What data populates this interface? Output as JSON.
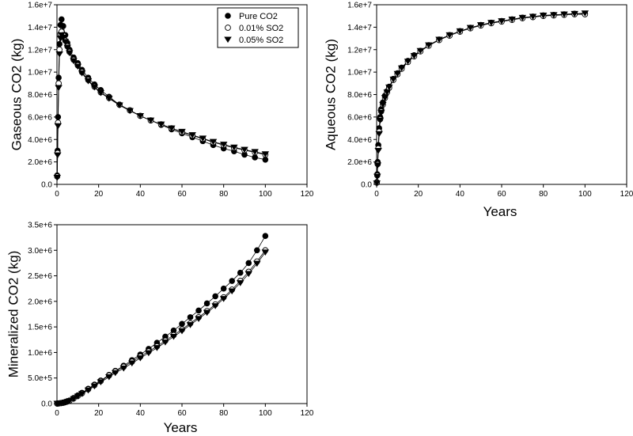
{
  "chart_data": [
    {
      "type": "scatter",
      "title": "",
      "xlabel": "",
      "ylabel": "Gaseous CO2 (kg)",
      "xlim": [
        0,
        120
      ],
      "ylim": [
        0,
        16000000
      ],
      "xticks": [
        0,
        20,
        40,
        60,
        80,
        100,
        120
      ],
      "xtick_labels": [
        "0",
        "20",
        "40",
        "60",
        "80",
        "100",
        "120"
      ],
      "yticks": [
        0,
        2000000,
        4000000,
        6000000,
        8000000,
        10000000,
        12000000,
        14000000,
        16000000
      ],
      "ytick_labels": [
        "0.0",
        "2.0e+6",
        "4.0e+6",
        "6.0e+6",
        "8.0e+6",
        "1.0e+7",
        "1.2e+7",
        "1.4e+7",
        "1.6e+7"
      ],
      "grid": false,
      "legend": {
        "position": "top-right",
        "entries": [
          {
            "label": "Pure CO2",
            "marker": "filled-circle"
          },
          {
            "label": "0.01% SO2",
            "marker": "open-circle"
          },
          {
            "label": "0.05% SO2",
            "marker": "filled-triangle-down"
          }
        ]
      },
      "series": [
        {
          "marker": "filled-circle",
          "x": [
            0.1,
            0.3,
            0.5,
            0.8,
            1.2,
            1.7,
            2.2,
            3,
            4,
            5,
            6,
            8,
            10,
            12,
            15,
            18,
            21,
            25,
            30,
            35,
            40,
            45,
            50,
            55,
            60,
            65,
            70,
            75,
            80,
            85,
            90,
            95,
            100
          ],
          "y": [
            800000,
            3000000,
            6000000,
            9500000,
            12500000,
            14200000,
            14700000,
            14100000,
            13300000,
            12600000,
            12000000,
            11300000,
            10800000,
            10200000,
            9500000,
            8900000,
            8400000,
            7800000,
            7100000,
            6600000,
            6100000,
            5700000,
            5300000,
            4900000,
            4550000,
            4200000,
            3850000,
            3500000,
            3200000,
            2950000,
            2650000,
            2400000,
            2200000
          ]
        },
        {
          "marker": "open-circle",
          "x": [
            0.1,
            0.3,
            0.5,
            0.8,
            1.2,
            1.7,
            2.2,
            3,
            4,
            5,
            6,
            8,
            10,
            12,
            15,
            18,
            21,
            25,
            30,
            35,
            40,
            45,
            50,
            55,
            60,
            65,
            70,
            75,
            80,
            85,
            90,
            95,
            100
          ],
          "y": [
            700000,
            2800000,
            5500000,
            9000000,
            12000000,
            13400000,
            13600000,
            13300000,
            12800000,
            12300000,
            11800000,
            11100000,
            10600000,
            10000000,
            9300000,
            8700000,
            8200000,
            7700000,
            7100000,
            6600000,
            6100000,
            5700000,
            5350000,
            5000000,
            4650000,
            4350000,
            4050000,
            3750000,
            3500000,
            3250000,
            3050000,
            2850000,
            2650000
          ]
        },
        {
          "marker": "filled-triangle-down",
          "x": [
            0.1,
            0.3,
            0.5,
            0.8,
            1.2,
            1.7,
            2.2,
            3,
            4,
            5,
            6,
            8,
            10,
            12,
            15,
            18,
            21,
            25,
            30,
            35,
            40,
            45,
            50,
            55,
            60,
            65,
            70,
            75,
            80,
            85,
            90,
            95,
            100
          ],
          "y": [
            600000,
            2600000,
            5200000,
            8600000,
            11600000,
            13000000,
            13300000,
            13100000,
            12700000,
            12200000,
            11700000,
            11000000,
            10500000,
            9900000,
            9200000,
            8650000,
            8150000,
            7650000,
            7050000,
            6550000,
            6100000,
            5700000,
            5350000,
            5000000,
            4700000,
            4400000,
            4100000,
            3800000,
            3550000,
            3300000,
            3100000,
            2900000,
            2700000
          ]
        }
      ]
    },
    {
      "type": "scatter",
      "title": "",
      "xlabel": "Years",
      "ylabel": "Aqueous CO2 (kg)",
      "xlim": [
        0,
        120
      ],
      "ylim": [
        0,
        16000000
      ],
      "xticks": [
        0,
        20,
        40,
        60,
        80,
        100,
        120
      ],
      "xtick_labels": [
        "0",
        "20",
        "40",
        "60",
        "80",
        "100",
        "120"
      ],
      "yticks": [
        0,
        2000000,
        4000000,
        6000000,
        8000000,
        10000000,
        12000000,
        14000000,
        16000000
      ],
      "ytick_labels": [
        "0.0",
        "2.0e+6",
        "4.0e+6",
        "6.0e+6",
        "8.0e+6",
        "1.0e+7",
        "1.2e+7",
        "1.4e+7",
        "1.6e+7"
      ],
      "grid": false,
      "series": [
        {
          "marker": "filled-circle",
          "x": [
            0.1,
            0.3,
            0.5,
            0.8,
            1.2,
            1.7,
            2.2,
            3,
            4,
            5,
            6,
            8,
            10,
            12,
            15,
            18,
            21,
            25,
            30,
            35,
            40,
            45,
            50,
            55,
            60,
            65,
            70,
            75,
            80,
            85,
            90,
            95,
            100
          ],
          "y": [
            200000,
            900000,
            2000000,
            3500000,
            5000000,
            6000000,
            6700000,
            7300000,
            7900000,
            8300000,
            8700000,
            9400000,
            9900000,
            10400000,
            11000000,
            11500000,
            11900000,
            12400000,
            12900000,
            13300000,
            13650000,
            13950000,
            14200000,
            14400000,
            14550000,
            14700000,
            14850000,
            14950000,
            15050000,
            15100000,
            15150000,
            15200000,
            15200000
          ]
        },
        {
          "marker": "open-circle",
          "x": [
            0.1,
            0.3,
            0.5,
            0.8,
            1.2,
            1.7,
            2.2,
            3,
            4,
            5,
            6,
            8,
            10,
            12,
            15,
            18,
            21,
            25,
            30,
            35,
            40,
            45,
            50,
            55,
            60,
            65,
            70,
            75,
            80,
            85,
            90,
            95,
            100
          ],
          "y": [
            150000,
            800000,
            1800000,
            3200000,
            4700000,
            5800000,
            6500000,
            7100000,
            7700000,
            8200000,
            8600000,
            9300000,
            9800000,
            10300000,
            10900000,
            11400000,
            11850000,
            12350000,
            12850000,
            13250000,
            13600000,
            13900000,
            14150000,
            14350000,
            14500000,
            14650000,
            14800000,
            14900000,
            15000000,
            15050000,
            15100000,
            15150000,
            15150000
          ]
        },
        {
          "marker": "filled-triangle-down",
          "x": [
            0.1,
            0.3,
            0.5,
            0.8,
            1.2,
            1.7,
            2.2,
            3,
            4,
            5,
            6,
            8,
            10,
            12,
            15,
            18,
            21,
            25,
            30,
            35,
            40,
            45,
            50,
            55,
            60,
            65,
            70,
            75,
            80,
            85,
            90,
            95,
            100
          ],
          "y": [
            100000,
            700000,
            1700000,
            3000000,
            4500000,
            5700000,
            6400000,
            7100000,
            7700000,
            8200000,
            8650000,
            9350000,
            9850000,
            10350000,
            10950000,
            11450000,
            11900000,
            12400000,
            12900000,
            13300000,
            13650000,
            13950000,
            14200000,
            14400000,
            14550000,
            14700000,
            14850000,
            14950000,
            15050000,
            15100000,
            15150000,
            15200000,
            15250000
          ]
        }
      ]
    },
    {
      "type": "scatter",
      "title": "",
      "xlabel": "Years",
      "ylabel": "Mineralized CO2 (kg)",
      "xlim": [
        0,
        120
      ],
      "ylim": [
        0,
        3500000
      ],
      "xticks": [
        0,
        20,
        40,
        60,
        80,
        100,
        120
      ],
      "xtick_labels": [
        "0",
        "20",
        "40",
        "60",
        "80",
        "100",
        "120"
      ],
      "yticks": [
        0,
        500000,
        1000000,
        1500000,
        2000000,
        2500000,
        3000000,
        3500000
      ],
      "ytick_labels": [
        "0.0",
        "5.0e+5",
        "1.0e+6",
        "1.5e+6",
        "2.0e+6",
        "2.5e+6",
        "3.0e+6",
        "3.5e+6"
      ],
      "grid": false,
      "series": [
        {
          "marker": "filled-circle",
          "x": [
            0.1,
            0.5,
            1,
            2,
            3,
            4,
            5,
            6,
            8,
            10,
            12,
            15,
            18,
            21,
            25,
            28,
            32,
            36,
            40,
            44,
            48,
            52,
            56,
            60,
            64,
            68,
            72,
            76,
            80,
            84,
            88,
            92,
            96,
            100
          ],
          "y": [
            0,
            2000,
            5000,
            10000,
            18000,
            30000,
            45000,
            60000,
            110000,
            160000,
            210000,
            290000,
            370000,
            450000,
            560000,
            640000,
            740000,
            850000,
            960000,
            1070000,
            1190000,
            1310000,
            1430000,
            1560000,
            1690000,
            1820000,
            1960000,
            2100000,
            2250000,
            2400000,
            2560000,
            2750000,
            3000000,
            3280000
          ]
        },
        {
          "marker": "open-circle",
          "x": [
            0.1,
            0.5,
            1,
            2,
            3,
            4,
            5,
            6,
            8,
            10,
            12,
            15,
            18,
            21,
            25,
            28,
            32,
            36,
            40,
            44,
            48,
            52,
            56,
            60,
            64,
            68,
            72,
            76,
            80,
            84,
            88,
            92,
            96,
            100
          ],
          "y": [
            0,
            2000,
            4000,
            9000,
            16000,
            27000,
            40000,
            55000,
            100000,
            150000,
            200000,
            280000,
            360000,
            440000,
            550000,
            630000,
            720000,
            820000,
            920000,
            1020000,
            1120000,
            1230000,
            1340000,
            1450000,
            1570000,
            1690000,
            1810000,
            1940000,
            2080000,
            2230000,
            2400000,
            2580000,
            2780000,
            3000000
          ]
        },
        {
          "marker": "filled-triangle-down",
          "x": [
            0.1,
            0.5,
            1,
            2,
            3,
            4,
            5,
            6,
            8,
            10,
            12,
            15,
            18,
            21,
            25,
            28,
            32,
            36,
            40,
            44,
            48,
            52,
            56,
            60,
            64,
            68,
            72,
            76,
            80,
            84,
            88,
            92,
            96,
            100
          ],
          "y": [
            0,
            1500,
            3500,
            8000,
            14000,
            24000,
            36000,
            50000,
            90000,
            140000,
            190000,
            260000,
            340000,
            420000,
            520000,
            600000,
            690000,
            790000,
            890000,
            990000,
            1090000,
            1200000,
            1310000,
            1420000,
            1540000,
            1660000,
            1780000,
            1910000,
            2050000,
            2200000,
            2360000,
            2540000,
            2740000,
            2960000
          ]
        }
      ]
    }
  ]
}
